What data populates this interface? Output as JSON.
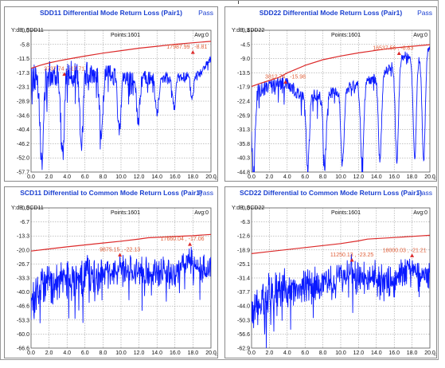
{
  "chart_data": [
    {
      "type": "line",
      "title": "SDD11 Differential Mode Return Loss (Pair1)",
      "status": "Pass",
      "ylabel_text": "Y:dB ,SDD11",
      "points_text": "Points:1601",
      "avg_text": "Avg:0",
      "xlim": [
        0,
        20
      ],
      "ylim": [
        -57.7,
        0
      ],
      "x_ticks": [
        "0.0",
        "2.0",
        "4.0",
        "6.0",
        "8.0",
        "10.0",
        "12.0",
        "14.0",
        "16.0",
        "18.0",
        "20.0"
      ],
      "y_ticks": [
        "0.0",
        "-5.8",
        "-11.5",
        "-17.3",
        "-23.1",
        "-28.9",
        "-34.6",
        "-40.4",
        "-46.2",
        "-52.0",
        "-57.7"
      ],
      "limit": {
        "x": [
          0,
          1,
          2,
          3,
          4,
          6,
          8,
          10,
          12,
          14,
          16,
          18,
          20
        ],
        "y": [
          -15.5,
          -14.3,
          -13.3,
          -12.5,
          -11.8,
          -10.5,
          -9.3,
          -8.3,
          -7.3,
          -6.5,
          -5.7,
          -5.1,
          -4.5
        ]
      },
      "markers": [
        {
          "x": 3.7,
          "y": -17.71,
          "label": "3737.74 , -17.71"
        },
        {
          "x": 17.99,
          "y": -8.81,
          "label": "17987.99 , -8.81"
        }
      ],
      "trace": {
        "floor_start": -57.7,
        "floor_end": -24.0,
        "nulls": [
          1.2,
          3.5,
          5.6,
          7.8,
          9.8,
          11.9,
          14.0,
          15.9,
          17.9
        ],
        "peaks": [
          [
            0,
            -20
          ],
          [
            2.2,
            -17.5
          ],
          [
            4.6,
            -17.3
          ],
          [
            6.8,
            -17.5
          ],
          [
            8.8,
            -18.2
          ],
          [
            10.8,
            -19.5
          ],
          [
            12.9,
            -19.5
          ],
          [
            15.0,
            -19.5
          ],
          [
            17.0,
            -19.0
          ],
          [
            18.8,
            -17.5
          ],
          [
            19.5,
            -14.0
          ],
          [
            20,
            -11.5
          ]
        ],
        "noise_near": 6.0,
        "noise_far": 1.5
      }
    },
    {
      "type": "line",
      "title": "SDD22 Differential Mode Return Loss (Pair1)",
      "status": "Pass",
      "ylabel_text": "Y:dB ,SDD22",
      "points_text": "Points:1601",
      "avg_text": "Avg:0",
      "xlim": [
        0,
        20
      ],
      "ylim": [
        -44.8,
        0.4
      ],
      "x_ticks": [
        "0.0",
        "2.0",
        "4.0",
        "6.0",
        "8.0",
        "10.0",
        "12.0",
        "14.0",
        "16.0",
        "18.0",
        "20.0"
      ],
      "y_ticks": [
        "0.4",
        "-4.5",
        "-9.0",
        "-13.5",
        "-17.9",
        "-22.4",
        "-26.9",
        "-31.3",
        "-35.8",
        "-40.3",
        "-44.8"
      ],
      "limit": {
        "x": [
          0,
          1,
          2,
          3,
          4,
          6,
          8,
          10,
          12,
          14,
          16,
          18,
          20
        ],
        "y": [
          -17.5,
          -16.5,
          -15.6,
          -14.7,
          -13.2,
          -10.8,
          -9.0,
          -7.8,
          -6.8,
          -6.0,
          -5.2,
          -4.7,
          -4.2
        ]
      },
      "markers": [
        {
          "x": 3.8,
          "y": -15.98,
          "label": "3812.74 , -15.98"
        },
        {
          "x": 16.54,
          "y": -6.83,
          "label": "16537.56 , -6.83"
        }
      ],
      "trace": {
        "floor_start": -44.8,
        "floor_end": -40.0,
        "nulls": [
          0.2,
          6.3,
          8.2,
          10.2,
          12.4,
          14.4,
          16.3,
          18.3,
          19.3
        ],
        "peaks": [
          [
            0,
            -20
          ],
          [
            1.2,
            -18.5
          ],
          [
            2.5,
            -17.5
          ],
          [
            3.8,
            -16.0
          ],
          [
            5.3,
            -20.0
          ],
          [
            7.2,
            -20.5
          ],
          [
            9.2,
            -19.5
          ],
          [
            11.3,
            -17.5
          ],
          [
            13.3,
            -15.5
          ],
          [
            15.3,
            -12.0
          ],
          [
            17.2,
            -7.5
          ],
          [
            18.8,
            -8.0
          ],
          [
            19.7,
            -5.5
          ],
          [
            20,
            -5.0
          ]
        ],
        "noise_near": 2.5,
        "noise_far": 1.0
      }
    },
    {
      "type": "line",
      "title": "SCD11 Differential to Common Mode Return Loss (Pair1)",
      "status": "Pass",
      "ylabel_text": "Y:dB ,SCD11",
      "points_text": "Points:1601",
      "avg_text": "Avg:0",
      "xlim": [
        0,
        20
      ],
      "ylim": [
        -66.6,
        0
      ],
      "x_ticks": [
        "0.0",
        "2.0",
        "4.0",
        "6.0",
        "8.0",
        "10.0",
        "12.0",
        "14.0",
        "16.0",
        "18.0",
        "20.0"
      ],
      "y_ticks": [
        "0.0",
        "-6.7",
        "-13.3",
        "-20.0",
        "-26.7",
        "-33.3",
        "-40.0",
        "-46.6",
        "-53.3",
        "-60.0",
        "-66.6"
      ],
      "limit": {
        "x": [
          0,
          2,
          4,
          6,
          8,
          10,
          12,
          13,
          16,
          18,
          20
        ],
        "y": [
          -20.5,
          -19.5,
          -18.5,
          -17.6,
          -16.7,
          -15.8,
          -14.8,
          -14.2,
          -13.6,
          -13.2,
          -12.6
        ]
      },
      "markers": [
        {
          "x": 9.88,
          "y": -22.13,
          "label": "9875.15 , -22.13"
        },
        {
          "x": 17.66,
          "y": -17.06,
          "label": "17660.04 , -17.06"
        }
      ],
      "trace": {
        "floor_start": -66.6,
        "floor_end": -42.0,
        "nulls": [],
        "peaks": [
          [
            0,
            -40
          ],
          [
            1,
            -33
          ],
          [
            2,
            -31
          ],
          [
            4,
            -30
          ],
          [
            6,
            -28
          ],
          [
            8,
            -27
          ],
          [
            10,
            -25
          ],
          [
            12,
            -27
          ],
          [
            14,
            -26
          ],
          [
            16,
            -27
          ],
          [
            17.6,
            -20
          ],
          [
            18.5,
            -26
          ],
          [
            20,
            -24
          ]
        ],
        "noise_near": 7.0,
        "noise_far": 3.5
      }
    },
    {
      "type": "line",
      "title": "SCD22 Differential to Common Mode Return Loss (Pair1)",
      "status": "Pass",
      "ylabel_text": "Y:dB ,SCD22",
      "points_text": "Points:1601",
      "avg_text": "Avg:0",
      "xlim": [
        0,
        20
      ],
      "ylim": [
        -62.9,
        0
      ],
      "x_ticks": [
        "0.0",
        "2.0",
        "4.0",
        "6.0",
        "8.0",
        "10.0",
        "12.0",
        "14.0",
        "16.0",
        "18.0",
        "20.0"
      ],
      "y_ticks": [
        "0.0",
        "-6.3",
        "-12.6",
        "-18.9",
        "-25.1",
        "-31.4",
        "-37.7",
        "-44.0",
        "-50.3",
        "-56.6",
        "-62.9"
      ],
      "limit": {
        "x": [
          0,
          2,
          4,
          6,
          8,
          10,
          12,
          13,
          16,
          18,
          20
        ],
        "y": [
          -20.5,
          -19.6,
          -18.7,
          -17.8,
          -16.9,
          -16.0,
          -14.8,
          -14.0,
          -13.3,
          -12.8,
          -12.3
        ]
      },
      "markers": [
        {
          "x": 11.26,
          "y": -23.25,
          "label": "11250.13 , -23.25"
        },
        {
          "x": 18.0,
          "y": -21.21,
          "label": "18000.03 , -21.21"
        }
      ],
      "trace": {
        "floor_start": -62.9,
        "floor_end": -42.0,
        "nulls": [],
        "peaks": [
          [
            0,
            -42
          ],
          [
            1,
            -37
          ],
          [
            2,
            -33
          ],
          [
            4,
            -31
          ],
          [
            6,
            -30
          ],
          [
            8,
            -29
          ],
          [
            10,
            -26
          ],
          [
            11.3,
            -23.5
          ],
          [
            12,
            -28
          ],
          [
            14,
            -27
          ],
          [
            16,
            -28
          ],
          [
            18,
            -21.5
          ],
          [
            19,
            -27
          ],
          [
            20,
            -25
          ]
        ],
        "noise_near": 6.0,
        "noise_far": 3.0
      }
    }
  ],
  "colors": {
    "title": "#1a3fd0",
    "trace": "#0a1aff",
    "limit": "#dc2a2a",
    "marker_label": "#e0603a",
    "grid": "#8a8a8a"
  }
}
